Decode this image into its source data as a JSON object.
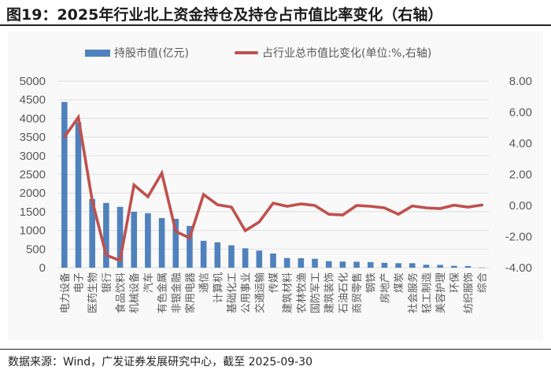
{
  "header": {
    "title": "图19：2025年行业北上资金持仓及持仓占市值比率变化（右轴）"
  },
  "legend": {
    "bar_label": "持股市值(亿元)",
    "line_label": "占行业总市值比变化(单位:%,右轴)"
  },
  "footer": {
    "source": "数据来源：Wind，广发证券发展研究中心，截至 2025-09-30"
  },
  "colors": {
    "bar": "#4f81bd",
    "line": "#c0504d",
    "grid": "#e3e3e3",
    "axis_text": "#595959"
  },
  "chart_data": {
    "type": "bar+line",
    "title": "2025年行业北上资金持仓及持仓占市值比率变化（右轴）",
    "xlabel": "",
    "ylabel_left": "持股市值(亿元)",
    "ylabel_right": "占行业总市值比变化(%)",
    "ylim_left": [
      0,
      5000
    ],
    "ylim_right": [
      -4,
      8
    ],
    "yticks_left": [
      "0",
      "500",
      "1000",
      "1500",
      "2000",
      "2500",
      "3000",
      "3500",
      "4000",
      "4500",
      "5000"
    ],
    "yticks_right": [
      "-4.00",
      "-2.00",
      "0.00",
      "2.00",
      "4.00",
      "6.00",
      "8.00"
    ],
    "grid": true,
    "legend_position": "top",
    "categories": [
      "电力设备",
      "电子",
      "医药生物",
      "银行",
      "食品饮料",
      "机械设备",
      "汽车",
      "有色金属",
      "非银金融",
      "家用电器",
      "通信",
      "计算机",
      "基础化工",
      "公用事业",
      "交通运输",
      "传媒",
      "建筑材料",
      "农林牧渔",
      "国防军工",
      "建筑装饰",
      "石油石化",
      "商贸零售",
      "钢铁",
      "房地产",
      "煤炭",
      "社会服务",
      "轻工制造",
      "美容护理",
      "环保",
      "纺织服饰",
      "综合"
    ],
    "series": [
      {
        "name": "持股市值(亿元)",
        "type": "bar",
        "axis": "left",
        "values": [
          4440,
          3900,
          1840,
          1735,
          1630,
          1500,
          1460,
          1330,
          1310,
          1120,
          720,
          680,
          600,
          520,
          460,
          380,
          260,
          255,
          240,
          175,
          165,
          160,
          150,
          130,
          120,
          120,
          80,
          75,
          50,
          45,
          5
        ]
      },
      {
        "name": "占行业总市值比变化(单位:%,右轴)",
        "type": "line",
        "axis": "right",
        "values": [
          4.4,
          5.67,
          0.3,
          -3.19,
          -3.54,
          1.32,
          0.56,
          2.08,
          -1.67,
          -2.08,
          0.71,
          0.05,
          -0.1,
          -1.62,
          -1.06,
          0.15,
          -0.05,
          0.1,
          0.0,
          -0.56,
          -0.61,
          0.0,
          -0.05,
          -0.15,
          -0.56,
          -0.03,
          -0.15,
          -0.2,
          0.02,
          -0.1,
          0.03
        ]
      }
    ]
  }
}
